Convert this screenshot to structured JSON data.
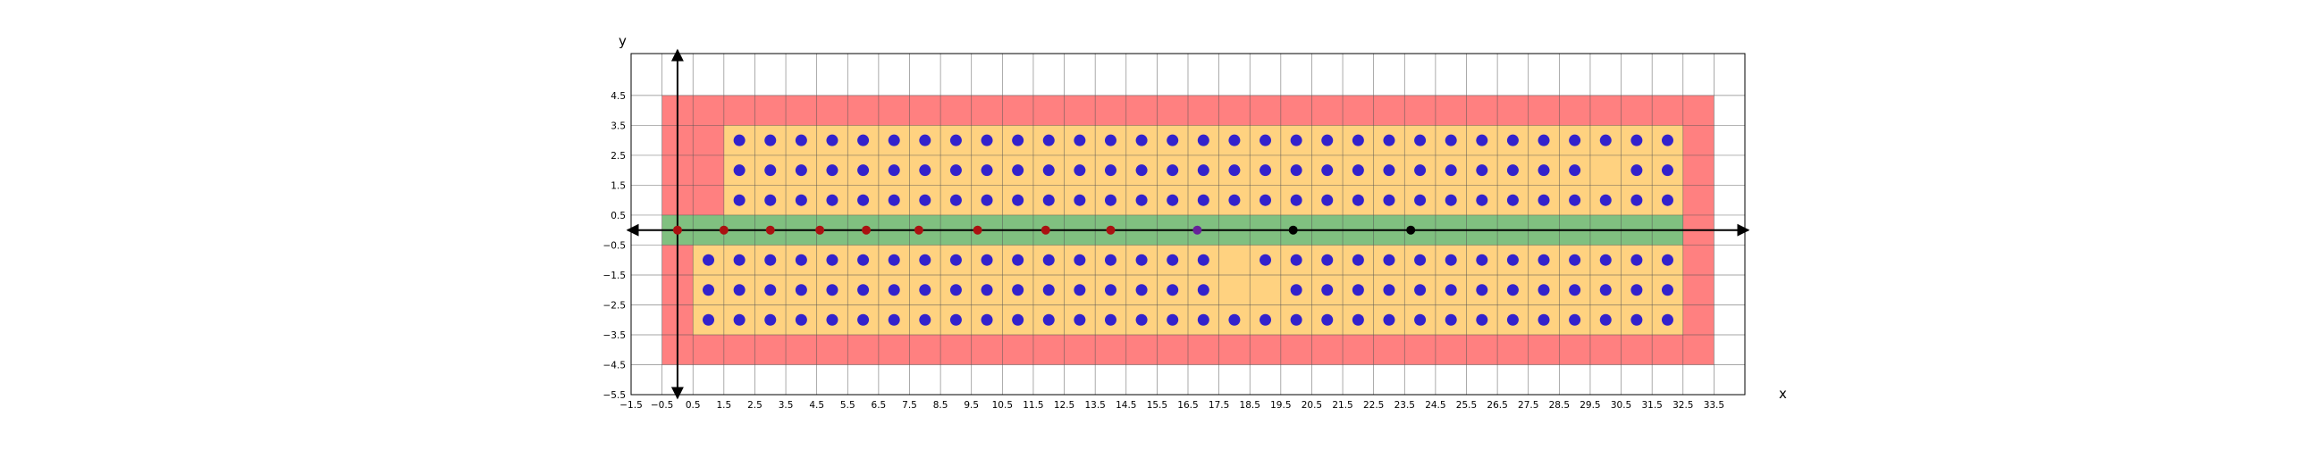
{
  "chart_data": {
    "type": "scatter",
    "xlabel": "x",
    "ylabel": "y",
    "xlim": [
      -1.5,
      34.5
    ],
    "ylim": [
      -5.5,
      5.9
    ],
    "x_ticks": [
      -1.5,
      -0.5,
      0.5,
      1.5,
      2.5,
      3.5,
      4.5,
      5.5,
      6.5,
      7.5,
      8.5,
      9.5,
      10.5,
      11.5,
      12.5,
      13.5,
      14.5,
      15.5,
      16.5,
      17.5,
      18.5,
      19.5,
      20.5,
      21.5,
      22.5,
      23.5,
      24.5,
      25.5,
      26.5,
      27.5,
      28.5,
      29.5,
      30.5,
      31.5,
      32.5,
      33.5
    ],
    "x_tick_labels": [
      "−1.5",
      "−0.5",
      "0.5",
      "1.5",
      "2.5",
      "3.5",
      "4.5",
      "5.5",
      "6.5",
      "7.5",
      "8.5",
      "9.5",
      "10.5",
      "11.5",
      "12.5",
      "13.5",
      "14.5",
      "15.5",
      "16.5",
      "17.5",
      "18.5",
      "19.5",
      "20.5",
      "21.5",
      "22.5",
      "23.5",
      "24.5",
      "25.5",
      "26.5",
      "27.5",
      "28.5",
      "29.5",
      "30.5",
      "31.5",
      "32.5",
      "33.5"
    ],
    "y_ticks": [
      4.5,
      3.5,
      2.5,
      1.5,
      0.5,
      -0.5,
      -1.5,
      -2.5,
      -3.5,
      -4.5,
      -5.5
    ],
    "y_tick_labels": [
      "4.5",
      "3.5",
      "2.5",
      "1.5",
      "0.5",
      "−0.5",
      "−1.5",
      "−2.5",
      "−3.5",
      "−4.5",
      "−5.5"
    ],
    "grid": true,
    "colors": {
      "outer_region": "#ff8080",
      "inner_region": "#ffd280",
      "center_band": "#80c080",
      "blue_points": "#3322cc",
      "red_points": "#aa1111",
      "purple_points": "#662299",
      "black_points": "#000000",
      "grid": "#555555",
      "axes": "#000000"
    },
    "regions": [
      {
        "kind": "outer",
        "polygon": [
          [
            -0.5,
            4.5
          ],
          [
            33.5,
            4.5
          ],
          [
            33.5,
            -4.5
          ],
          [
            -0.5,
            -4.5
          ]
        ]
      },
      {
        "kind": "inner",
        "polygon": [
          [
            1.5,
            3.5
          ],
          [
            32.5,
            3.5
          ],
          [
            32.5,
            -3.5
          ],
          [
            0.5,
            -3.5
          ],
          [
            0.5,
            -0.5
          ],
          [
            1.5,
            -0.5
          ]
        ]
      },
      {
        "kind": "band",
        "polygon": [
          [
            -0.5,
            0.5
          ],
          [
            32.5,
            0.5
          ],
          [
            32.5,
            -0.5
          ],
          [
            -0.5,
            -0.5
          ]
        ]
      }
    ],
    "blue_grid": {
      "upper_x_range": [
        2,
        32
      ],
      "upper_y": [
        3,
        2,
        1
      ],
      "lower_x_range": [
        1,
        32
      ],
      "lower_y": [
        -1,
        -2,
        -3
      ],
      "missing": [
        [
          30,
          2
        ],
        [
          18,
          -1
        ],
        [
          18,
          -2
        ],
        [
          19,
          -2
        ]
      ]
    },
    "series": [
      {
        "color": "red_points",
        "points": [
          [
            0,
            0
          ],
          [
            1.5,
            0
          ],
          [
            3,
            0
          ],
          [
            4.6,
            0
          ],
          [
            6.1,
            0
          ],
          [
            7.8,
            0
          ],
          [
            9.7,
            0
          ],
          [
            11.9,
            0
          ],
          [
            14,
            0
          ]
        ]
      },
      {
        "color": "purple_points",
        "points": [
          [
            16.8,
            0
          ]
        ]
      },
      {
        "color": "black_points",
        "points": [
          [
            19.9,
            0
          ],
          [
            23.7,
            0
          ]
        ]
      }
    ]
  }
}
